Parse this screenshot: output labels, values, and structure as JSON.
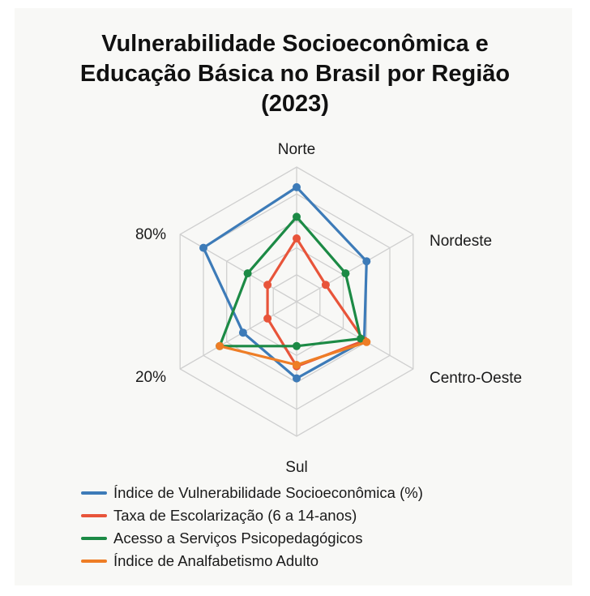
{
  "title_lines": [
    "Vulnerabilidade Socioeconômica e",
    "Educação Básica no Brasil por Região",
    "(2023)"
  ],
  "chart_data": {
    "type": "radar",
    "title": "Vulnerabilidade Socioeconômica e Educação Básica no Brasil por Região (2023)",
    "categories": [
      "Norte",
      "Nordeste",
      "Centro-Oeste",
      "Sul",
      "",
      ""
    ],
    "tick_labels": [
      "80%",
      "20%"
    ],
    "rlim": [
      0,
      100
    ],
    "rings": 5,
    "grid": true,
    "legend_position": "bottom",
    "series": [
      {
        "name": "Índice de Vulnerabilidade Socioeconômica (%)",
        "color": "#3d7bb8",
        "values": [
          85,
          60,
          58,
          57,
          46,
          80
        ]
      },
      {
        "name": "Taxa de Escolarização (6 a 14-anos)",
        "color": "#e8543a",
        "values": [
          47,
          25,
          58,
          48,
          25,
          25
        ]
      },
      {
        "name": "Acesso a Serviços Psicopedagógicos",
        "color": "#1c8a45",
        "values": [
          63,
          42,
          55,
          33,
          66,
          42
        ]
      },
      {
        "name": "Índice de Analfabetismo Adulto",
        "color": "#ee7d26",
        "values": [
          null,
          null,
          60,
          47,
          66,
          null
        ]
      }
    ]
  }
}
